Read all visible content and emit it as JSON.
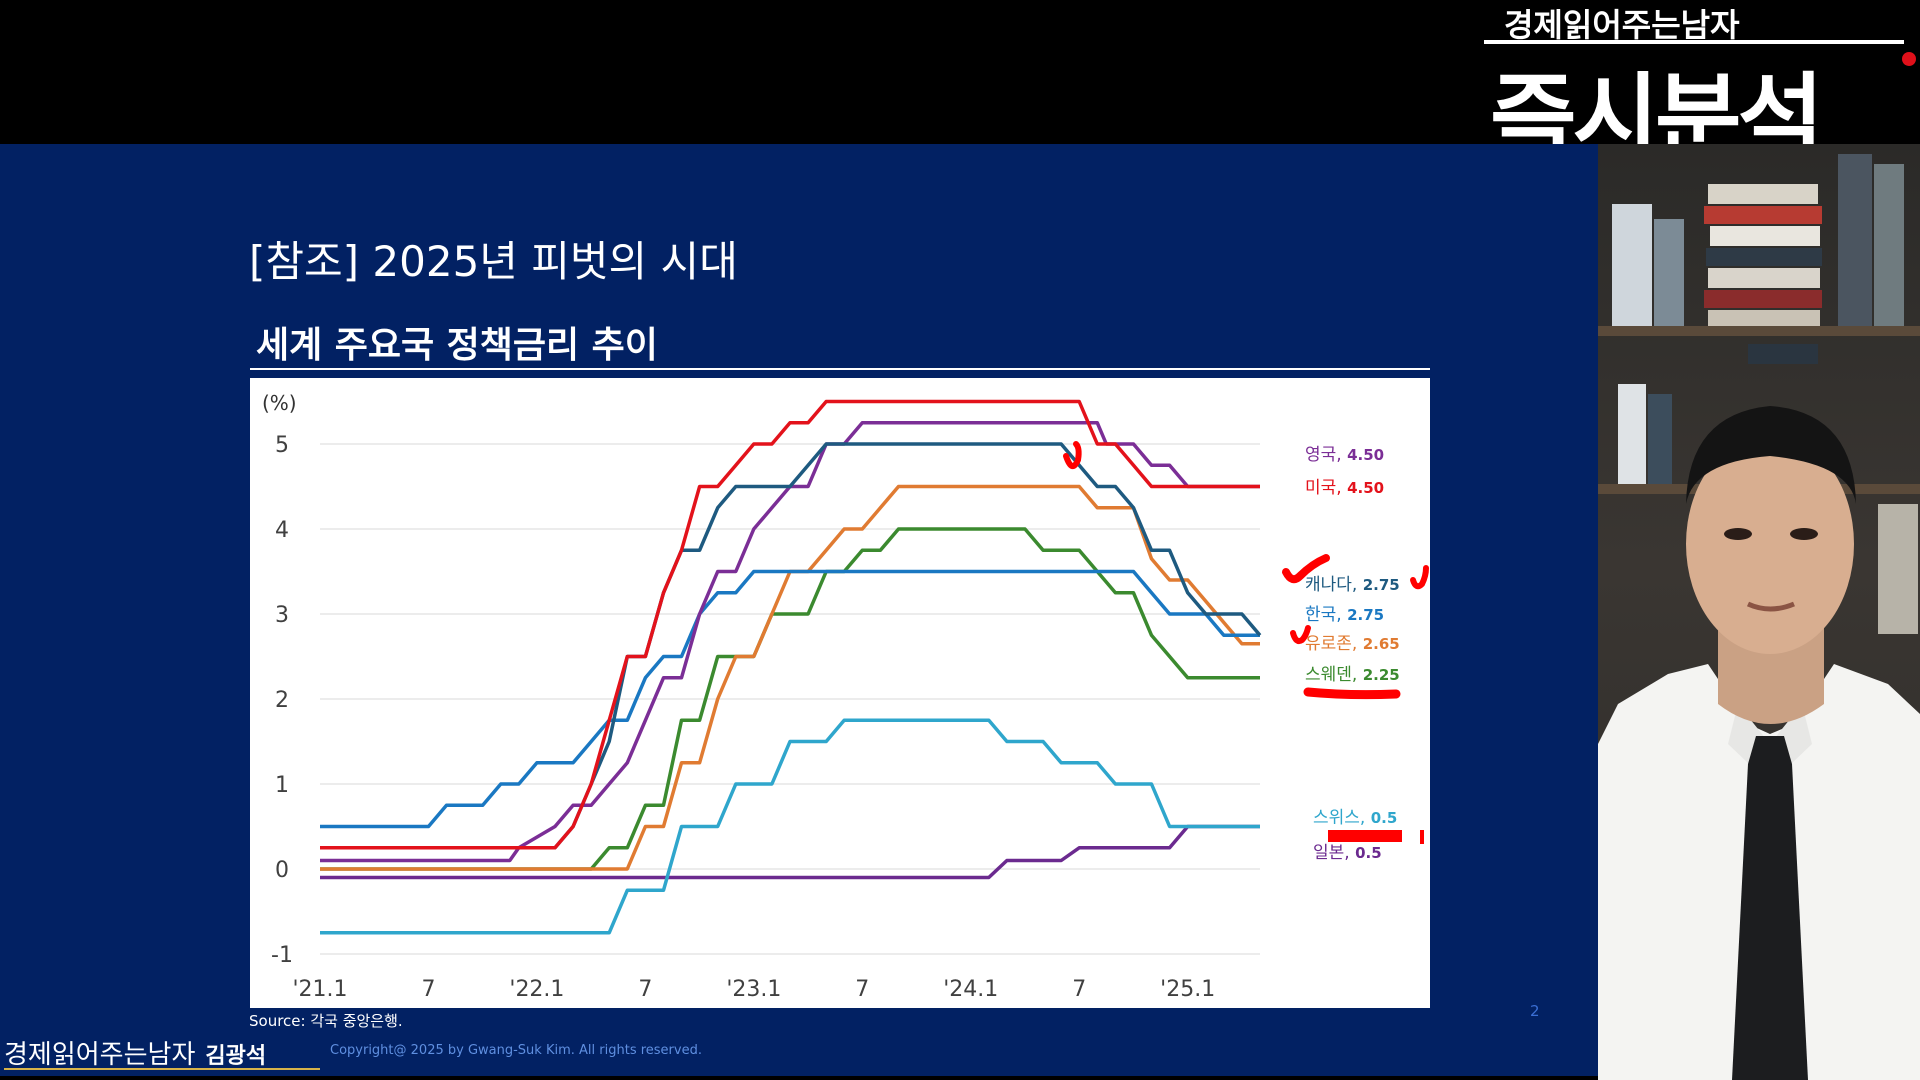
{
  "slide": {
    "title": "[참조] 2025년 피벗의 시대",
    "chart_heading": "세계 주요국 정책금리 추이",
    "source": "Source: 각국 중앙은행.",
    "page_number": "2",
    "footer_logo": "경제읽어주는남자",
    "footer_author": "김광석",
    "copyright": "Copyright@ 2025 by Gwang-Suk Kim. All rights reserved."
  },
  "brand": {
    "small": "경제읽어주는남자",
    "big": "즉시분석"
  },
  "colors": {
    "slide_bg": "#022163",
    "uk": "#7b2e96",
    "us": "#e3121b",
    "canada": "#1e5a80",
    "korea": "#1a78c2",
    "eurozone": "#e07b32",
    "sweden": "#3b8a2f",
    "swiss": "#2fa6cc",
    "japan": "#6b2a8f",
    "annotation": "#ff0000"
  },
  "chart_data": {
    "type": "line",
    "ylabel": "(%)",
    "ylim": [
      -1,
      5
    ],
    "yticks": [
      "-1",
      "0",
      "1",
      "2",
      "3",
      "4",
      "5"
    ],
    "xlim": [
      0,
      52
    ],
    "x_ticks": [
      {
        "x": 0,
        "label": "'21.1"
      },
      {
        "x": 6,
        "label": "7"
      },
      {
        "x": 12,
        "label": "'22.1"
      },
      {
        "x": 18,
        "label": "7"
      },
      {
        "x": 24,
        "label": "'23.1"
      },
      {
        "x": 30,
        "label": "7"
      },
      {
        "x": 36,
        "label": "'24.1"
      },
      {
        "x": 42,
        "label": "7"
      },
      {
        "x": 48,
        "label": "'25.1"
      }
    ],
    "grid": true,
    "series": [
      {
        "key": "uk",
        "name": "영국",
        "value_label": "4.50",
        "points": [
          [
            0,
            0.1
          ],
          [
            10.5,
            0.1
          ],
          [
            11,
            0.25
          ],
          [
            13,
            0.5
          ],
          [
            14,
            0.75
          ],
          [
            15,
            0.75
          ],
          [
            16,
            1.0
          ],
          [
            17,
            1.25
          ],
          [
            18,
            1.75
          ],
          [
            19,
            2.25
          ],
          [
            20,
            2.25
          ],
          [
            21,
            3.0
          ],
          [
            22,
            3.5
          ],
          [
            23,
            3.5
          ],
          [
            24,
            4.0
          ],
          [
            25,
            4.25
          ],
          [
            26,
            4.5
          ],
          [
            27,
            4.5
          ],
          [
            28,
            5.0
          ],
          [
            29,
            5.0
          ],
          [
            30,
            5.25
          ],
          [
            43,
            5.25
          ],
          [
            43.5,
            5.0
          ],
          [
            45,
            5.0
          ],
          [
            46,
            4.75
          ],
          [
            47,
            4.75
          ],
          [
            48,
            4.5
          ],
          [
            52,
            4.5
          ]
        ]
      },
      {
        "key": "us",
        "name": "미국",
        "value_label": "4.50",
        "points": [
          [
            0,
            0.25
          ],
          [
            13,
            0.25
          ],
          [
            14,
            0.5
          ],
          [
            15,
            1.0
          ],
          [
            16,
            1.75
          ],
          [
            17,
            2.5
          ],
          [
            18,
            2.5
          ],
          [
            19,
            3.25
          ],
          [
            20,
            3.75
          ],
          [
            21,
            4.5
          ],
          [
            22,
            4.5
          ],
          [
            23,
            4.75
          ],
          [
            24,
            5.0
          ],
          [
            25,
            5.0
          ],
          [
            26,
            5.25
          ],
          [
            27,
            5.25
          ],
          [
            28,
            5.5
          ],
          [
            42,
            5.5
          ],
          [
            43,
            5.0
          ],
          [
            44,
            5.0
          ],
          [
            45,
            4.75
          ],
          [
            46,
            4.5
          ],
          [
            52,
            4.5
          ]
        ]
      },
      {
        "key": "canada",
        "name": "캐나다",
        "value_label": "2.75",
        "points": [
          [
            0,
            0.25
          ],
          [
            13,
            0.25
          ],
          [
            14,
            0.5
          ],
          [
            15,
            1.0
          ],
          [
            16,
            1.5
          ],
          [
            17,
            2.5
          ],
          [
            18,
            2.5
          ],
          [
            19,
            3.25
          ],
          [
            20,
            3.75
          ],
          [
            21,
            3.75
          ],
          [
            22,
            4.25
          ],
          [
            23,
            4.5
          ],
          [
            26,
            4.5
          ],
          [
            27,
            4.75
          ],
          [
            28,
            5.0
          ],
          [
            41,
            5.0
          ],
          [
            42,
            4.75
          ],
          [
            43,
            4.5
          ],
          [
            44,
            4.5
          ],
          [
            45,
            4.25
          ],
          [
            46,
            3.75
          ],
          [
            47,
            3.75
          ],
          [
            48,
            3.25
          ],
          [
            49,
            3.0
          ],
          [
            51,
            3.0
          ],
          [
            52,
            2.75
          ]
        ]
      },
      {
        "key": "korea",
        "name": "한국",
        "value_label": "2.75",
        "points": [
          [
            0,
            0.5
          ],
          [
            6,
            0.5
          ],
          [
            7,
            0.75
          ],
          [
            9,
            0.75
          ],
          [
            10,
            1.0
          ],
          [
            11,
            1.0
          ],
          [
            12,
            1.25
          ],
          [
            14,
            1.25
          ],
          [
            15,
            1.5
          ],
          [
            16,
            1.75
          ],
          [
            17,
            1.75
          ],
          [
            18,
            2.25
          ],
          [
            19,
            2.5
          ],
          [
            20,
            2.5
          ],
          [
            21,
            3.0
          ],
          [
            22,
            3.25
          ],
          [
            23,
            3.25
          ],
          [
            24,
            3.5
          ],
          [
            45,
            3.5
          ],
          [
            46,
            3.25
          ],
          [
            47,
            3.0
          ],
          [
            49,
            3.0
          ],
          [
            50,
            2.75
          ],
          [
            52,
            2.75
          ]
        ]
      },
      {
        "key": "eurozone",
        "name": "유로존",
        "value_label": "2.65",
        "points": [
          [
            0,
            0
          ],
          [
            17,
            0
          ],
          [
            18,
            0.5
          ],
          [
            19,
            0.5
          ],
          [
            20,
            1.25
          ],
          [
            21,
            1.25
          ],
          [
            22,
            2.0
          ],
          [
            23,
            2.5
          ],
          [
            24,
            2.5
          ],
          [
            25,
            3.0
          ],
          [
            26,
            3.5
          ],
          [
            27,
            3.5
          ],
          [
            28,
            3.75
          ],
          [
            29,
            4.0
          ],
          [
            30,
            4.0
          ],
          [
            31,
            4.25
          ],
          [
            32,
            4.5
          ],
          [
            42,
            4.5
          ],
          [
            43,
            4.25
          ],
          [
            45,
            4.25
          ],
          [
            46,
            3.65
          ],
          [
            47,
            3.4
          ],
          [
            48,
            3.4
          ],
          [
            49,
            3.15
          ],
          [
            50,
            2.9
          ],
          [
            51,
            2.65
          ],
          [
            52,
            2.65
          ]
        ]
      },
      {
        "key": "sweden",
        "name": "스웨덴",
        "value_label": "2.25",
        "points": [
          [
            0,
            0
          ],
          [
            15,
            0
          ],
          [
            16,
            0.25
          ],
          [
            17,
            0.25
          ],
          [
            18,
            0.75
          ],
          [
            19,
            0.75
          ],
          [
            20,
            1.75
          ],
          [
            21,
            1.75
          ],
          [
            22,
            2.5
          ],
          [
            24,
            2.5
          ],
          [
            25,
            3.0
          ],
          [
            27,
            3.0
          ],
          [
            28,
            3.5
          ],
          [
            29,
            3.5
          ],
          [
            30,
            3.75
          ],
          [
            31,
            3.75
          ],
          [
            32,
            4.0
          ],
          [
            39,
            4.0
          ],
          [
            40,
            3.75
          ],
          [
            42,
            3.75
          ],
          [
            43,
            3.5
          ],
          [
            44,
            3.25
          ],
          [
            45,
            3.25
          ],
          [
            46,
            2.75
          ],
          [
            47,
            2.5
          ],
          [
            48,
            2.25
          ],
          [
            52,
            2.25
          ]
        ]
      },
      {
        "key": "swiss",
        "name": "스위스",
        "value_label": "0.5",
        "points": [
          [
            0,
            -0.75
          ],
          [
            16,
            -0.75
          ],
          [
            17,
            -0.25
          ],
          [
            19,
            -0.25
          ],
          [
            20,
            0.5
          ],
          [
            22,
            0.5
          ],
          [
            23,
            1.0
          ],
          [
            25,
            1.0
          ],
          [
            26,
            1.5
          ],
          [
            28,
            1.5
          ],
          [
            29,
            1.75
          ],
          [
            37,
            1.75
          ],
          [
            38,
            1.5
          ],
          [
            40,
            1.5
          ],
          [
            41,
            1.25
          ],
          [
            43,
            1.25
          ],
          [
            44,
            1.0
          ],
          [
            46,
            1.0
          ],
          [
            47,
            0.5
          ],
          [
            52,
            0.5
          ]
        ]
      },
      {
        "key": "japan",
        "name": "일본",
        "value_label": "0.5",
        "points": [
          [
            0,
            -0.1
          ],
          [
            37,
            -0.1
          ],
          [
            38,
            0.1
          ],
          [
            41,
            0.1
          ],
          [
            42,
            0.25
          ],
          [
            47,
            0.25
          ],
          [
            48,
            0.5
          ],
          [
            52,
            0.5
          ]
        ]
      }
    ]
  }
}
